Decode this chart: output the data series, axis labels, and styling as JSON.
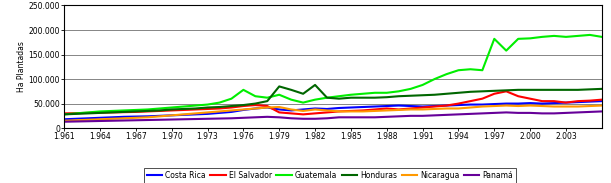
{
  "years": [
    1961,
    1962,
    1963,
    1964,
    1965,
    1966,
    1967,
    1968,
    1969,
    1970,
    1971,
    1972,
    1973,
    1974,
    1975,
    1976,
    1977,
    1978,
    1979,
    1980,
    1981,
    1982,
    1983,
    1984,
    1985,
    1986,
    1987,
    1988,
    1989,
    1990,
    1991,
    1992,
    1993,
    1994,
    1995,
    1996,
    1997,
    1998,
    1999,
    2000,
    2001,
    2002,
    2003,
    2004,
    2005,
    2006
  ],
  "Costa Rica": [
    18000,
    19000,
    20000,
    21000,
    22000,
    23000,
    23500,
    24000,
    25000,
    26000,
    27000,
    28000,
    29000,
    31000,
    33000,
    37000,
    40000,
    42000,
    38000,
    36000,
    38000,
    40000,
    39000,
    41000,
    42000,
    43000,
    44000,
    45000,
    46000,
    45000,
    44000,
    45000,
    46000,
    47000,
    48000,
    48000,
    49000,
    50000,
    50000,
    51000,
    50000,
    51000,
    52000,
    53000,
    54000,
    55000
  ],
  "El Salvador": [
    30000,
    30500,
    31000,
    31500,
    32000,
    32500,
    33000,
    34000,
    35000,
    36000,
    37000,
    38000,
    39000,
    40000,
    42000,
    45000,
    47000,
    45000,
    32000,
    30000,
    28000,
    30000,
    32000,
    34000,
    35000,
    36000,
    38000,
    40000,
    38000,
    40000,
    42000,
    44000,
    46000,
    50000,
    55000,
    60000,
    70000,
    75000,
    65000,
    60000,
    55000,
    55000,
    52000,
    55000,
    56000,
    58000
  ],
  "Guatemala": [
    28000,
    30000,
    32000,
    34000,
    35000,
    36000,
    37000,
    38000,
    40000,
    42000,
    44000,
    46000,
    48000,
    52000,
    60000,
    78000,
    65000,
    62000,
    68000,
    58000,
    52000,
    58000,
    62000,
    65000,
    68000,
    70000,
    72000,
    72000,
    75000,
    80000,
    88000,
    100000,
    110000,
    118000,
    120000,
    118000,
    182000,
    158000,
    182000,
    183000,
    186000,
    188000,
    186000,
    188000,
    190000,
    186000
  ],
  "Honduras": [
    28000,
    29000,
    30000,
    31000,
    32000,
    33000,
    34000,
    35000,
    36000,
    38000,
    39000,
    40000,
    42000,
    43000,
    45000,
    47000,
    50000,
    55000,
    85000,
    78000,
    70000,
    88000,
    62000,
    60000,
    62000,
    62000,
    62000,
    63000,
    65000,
    66000,
    67000,
    68000,
    70000,
    72000,
    74000,
    75000,
    76000,
    77000,
    78000,
    78000,
    78000,
    78000,
    78000,
    78000,
    79000,
    80000
  ],
  "Nicaragua": [
    15000,
    16000,
    17000,
    18000,
    19000,
    20000,
    21000,
    22000,
    24000,
    26000,
    28000,
    30000,
    32000,
    34000,
    36000,
    38000,
    40000,
    42000,
    43000,
    38000,
    35000,
    38000,
    36000,
    34000,
    34000,
    34000,
    35000,
    36000,
    37000,
    38000,
    38000,
    39000,
    40000,
    40000,
    42000,
    44000,
    45000,
    46000,
    45000,
    46000,
    45000,
    44000,
    44000,
    44000,
    45000,
    46000
  ],
  "Panama": [
    13000,
    13500,
    14000,
    14500,
    15000,
    15500,
    16000,
    16500,
    17000,
    17500,
    18000,
    18500,
    19000,
    19500,
    20000,
    21000,
    22000,
    23000,
    22000,
    20000,
    19000,
    19000,
    20000,
    22000,
    22000,
    22000,
    22000,
    23000,
    24000,
    25000,
    25000,
    26000,
    27000,
    28000,
    29000,
    30000,
    31000,
    32000,
    31000,
    31000,
    30000,
    30000,
    31000,
    32000,
    33000,
    34000
  ],
  "colors": {
    "Costa Rica": "#0000ff",
    "El Salvador": "#ff0000",
    "Guatemala": "#00ee00",
    "Honduras": "#006600",
    "Nicaragua": "#ff9900",
    "Panama": "#660099"
  },
  "linewidths": {
    "Costa Rica": 1.5,
    "El Salvador": 1.5,
    "Guatemala": 1.5,
    "Honduras": 1.5,
    "Nicaragua": 1.5,
    "Panama": 1.5
  },
  "ylabel": "Ha Plantadas",
  "ylim": [
    0,
    250000
  ],
  "yticks": [
    0,
    50000,
    100000,
    150000,
    200000,
    250000
  ],
  "xticks": [
    1961,
    1964,
    1967,
    1970,
    1973,
    1976,
    1979,
    1982,
    1985,
    1988,
    1991,
    1994,
    1997,
    2000,
    2003
  ],
  "legend_labels": [
    "Costa Rica",
    "El Salvador",
    "Guatemala",
    "Honduras",
    "Nicaragua",
    "Panamá"
  ],
  "bg_color": "#ffffff",
  "plot_bg": "#ffffff",
  "grid_color": "#555555"
}
